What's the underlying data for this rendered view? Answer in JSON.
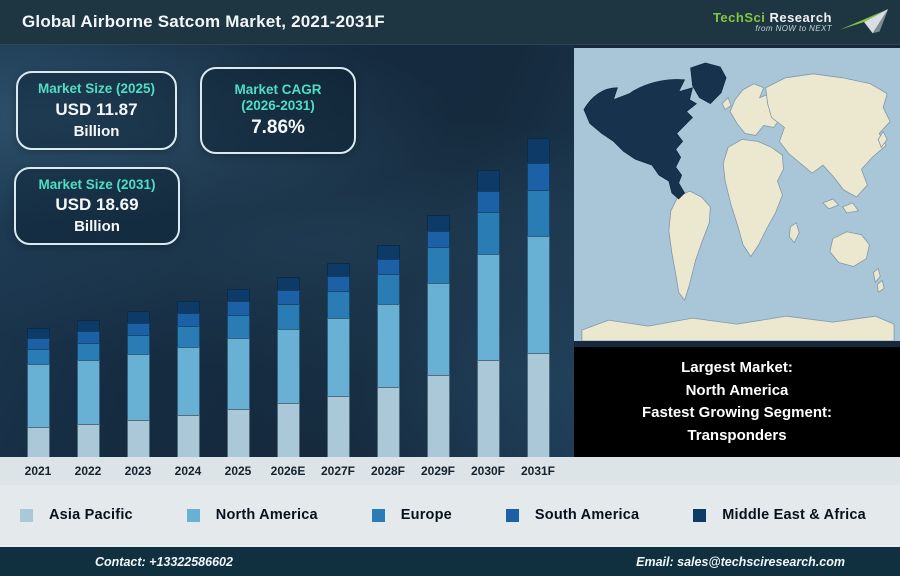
{
  "header": {
    "title": "Global Airborne Satcom Market, 2021-2031F",
    "logo": {
      "brand_primary": "TechSci",
      "brand_secondary": "Research",
      "tagline": "from NOW to NEXT"
    }
  },
  "info_boxes": [
    {
      "title": "Market Size (2025)",
      "value": "USD 11.87",
      "unit": "Billion"
    },
    {
      "title": "Market CAGR",
      "title_line2": "(2026-2031)",
      "value": "7.86%"
    },
    {
      "title": "Market Size (2031)",
      "value": "USD 18.69",
      "unit": "Billion"
    }
  ],
  "callout": {
    "lines": [
      "Largest Market:",
      "North America",
      "Fastest Growing Segment:",
      "Transponders"
    ]
  },
  "map": {
    "highlight_region": "North America",
    "ocean_color": "#a9c6d8",
    "land_color": "#ece7cf",
    "highlight_color": "#16324d"
  },
  "chart_data": {
    "type": "bar",
    "stacked": true,
    "title": "Global Airborne Satcom Market, 2021-2031F",
    "xlabel": "",
    "ylabel": "",
    "axes_note": "category x-axis only; no value axis or gridlines shown",
    "units": "relative stacked-segment heights (px, estimated from chart)",
    "anchors": {
      "market_size_2025_usd_billion": 11.87,
      "market_size_2031_usd_billion": 18.69,
      "cagr_2026_2031_pct": 7.86
    },
    "legend_position": "bottom",
    "categories": [
      "2021",
      "2022",
      "2023",
      "2024",
      "2025",
      "2026E",
      "2027F",
      "2028F",
      "2029F",
      "2030F",
      "2031F"
    ],
    "series": [
      {
        "name": "Asia Pacific",
        "color": "#aac8d7",
        "values": [
          30,
          33,
          37,
          42,
          48,
          54,
          61,
          70,
          82,
          97,
          104
        ]
      },
      {
        "name": "North America",
        "color": "#68b0d4",
        "values": [
          63,
          64,
          66,
          68,
          71,
          74,
          78,
          83,
          92,
          106,
          117
        ]
      },
      {
        "name": "Europe",
        "color": "#2a7cb4",
        "values": [
          15,
          17,
          19,
          21,
          23,
          25,
          27,
          30,
          36,
          42,
          46
        ]
      },
      {
        "name": "South America",
        "color": "#1c60a6",
        "values": [
          11,
          12,
          12,
          13,
          14,
          14,
          15,
          15,
          16,
          21,
          27
        ]
      },
      {
        "name": "Middle East & Africa",
        "color": "#0d3a66",
        "values": [
          10,
          11,
          12,
          12,
          12,
          13,
          13,
          14,
          16,
          21,
          25
        ]
      }
    ],
    "totals": [
      129,
      137,
      146,
      156,
      168,
      180,
      194,
      212,
      242,
      287,
      319
    ]
  },
  "footer": {
    "contact": "Contact: +13322586602",
    "email": "Email: sales@techsciresearch.com"
  },
  "colors": {
    "accent_teal": "#4fdec4",
    "header_bg": "#1e3642",
    "panel_bg": "#16293c",
    "footer_bg": "#10303f",
    "logo_green": "#84c441"
  }
}
